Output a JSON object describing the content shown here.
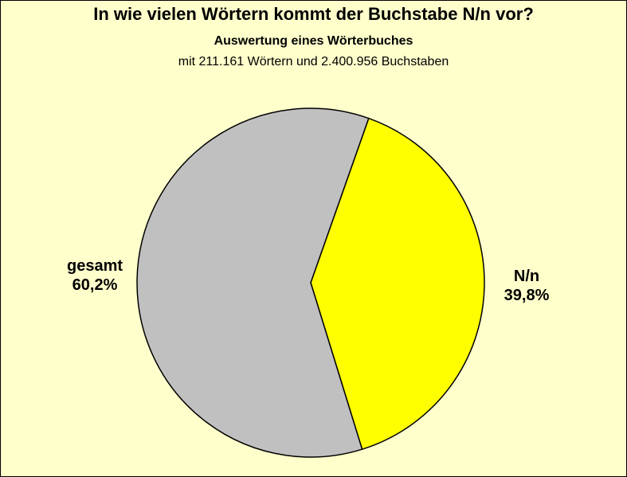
{
  "chart_data": {
    "type": "pie",
    "title": "In wie vielen Wörtern kommt der Buchstabe N/n vor?",
    "subtitle": "Auswertung eines Wörterbuches",
    "note": "mit 211.161 Wörtern und 2.400.956 Buchstaben",
    "slices": [
      {
        "name": "N/n",
        "value": 39.8,
        "label": "39,8%",
        "color": "#ffff00"
      },
      {
        "name": "gesamt",
        "value": 60.2,
        "label": "60,2%",
        "color": "#c0c0c0"
      }
    ],
    "start_angle_deg": 19.5,
    "direction": "clockwise"
  },
  "colors": {
    "background": "#ffffcc",
    "outline": "#000000"
  }
}
